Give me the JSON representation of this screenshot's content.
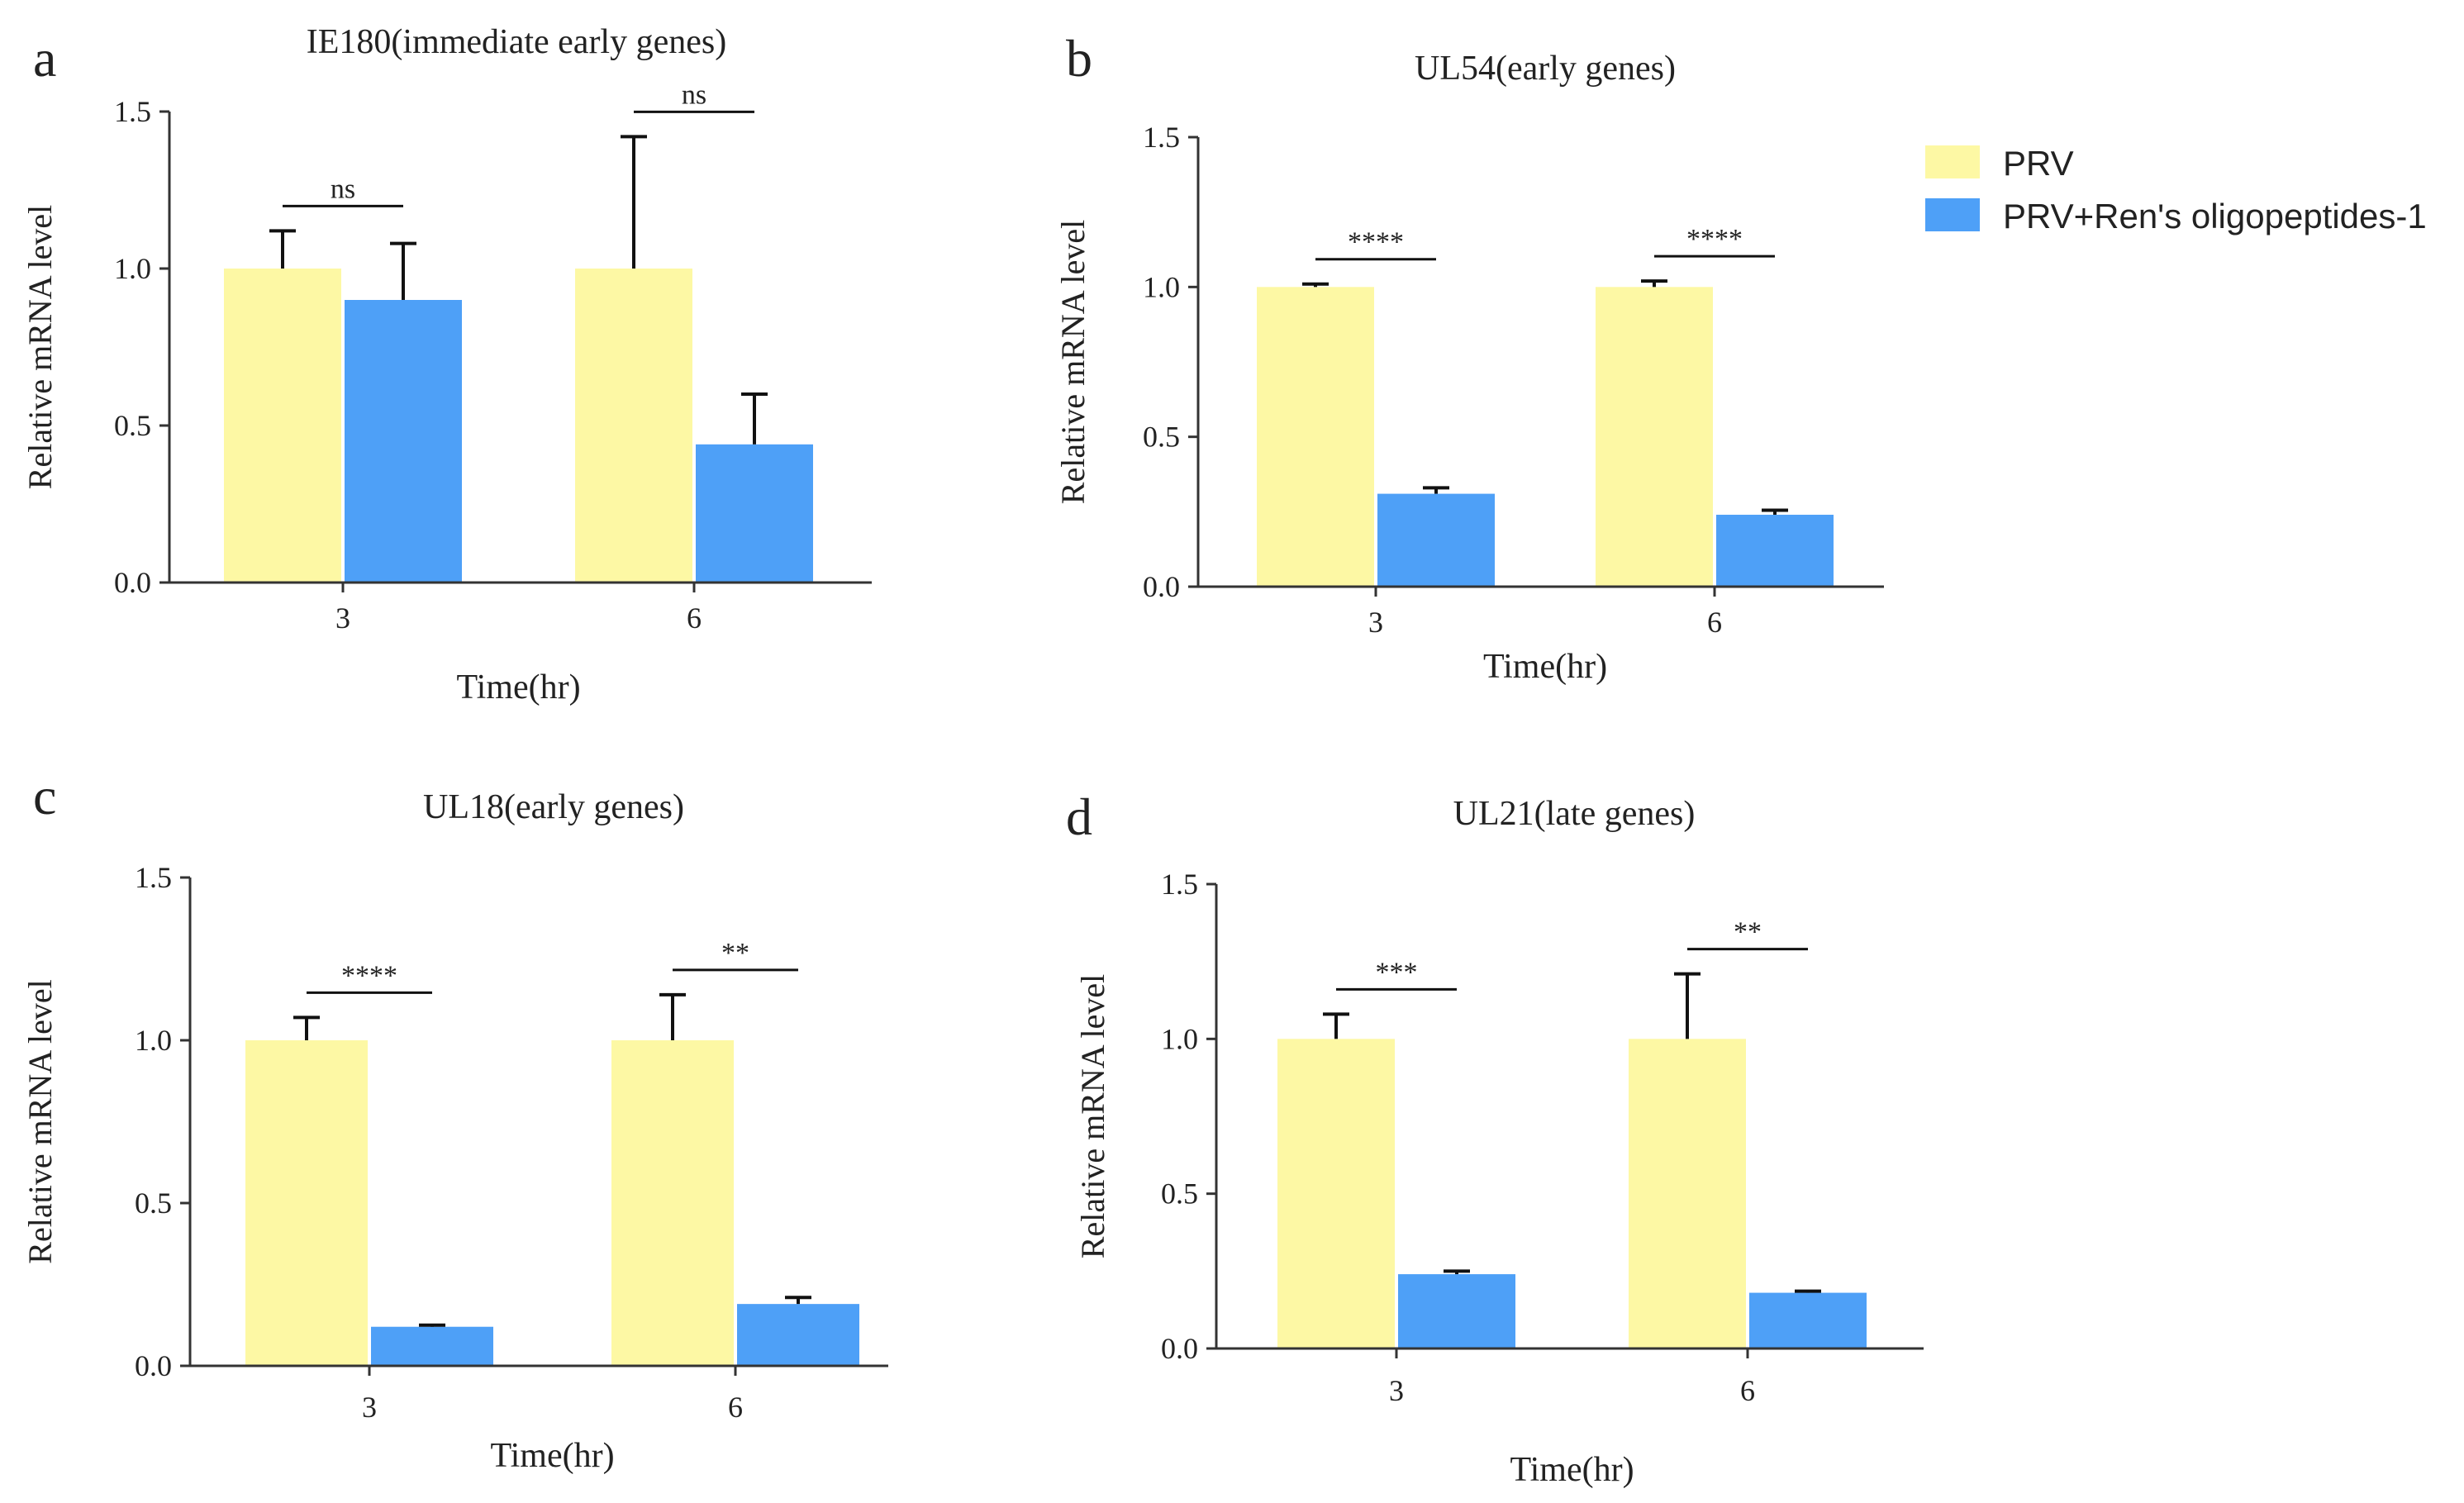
{
  "colors": {
    "prv": "#fdf8a4",
    "treated": "#4ea0f7",
    "axis": "#333333",
    "text": "#222222"
  },
  "legend": {
    "placement": "top-right",
    "entries": [
      {
        "label": "PRV",
        "color": "#fdf8a4"
      },
      {
        "label": "PRV+Ren's oligopeptides-1",
        "color": "#4ea0f7"
      }
    ]
  },
  "chart_data": [
    {
      "panel": "a",
      "type": "bar",
      "title": "IE180(immediate early genes)",
      "xlabel": "Time(hr)",
      "ylabel": "Relative mRNA level",
      "ylim": [
        0,
        1.5
      ],
      "yticks": [
        "0.0",
        "0.5",
        "1.0",
        "1.5"
      ],
      "grid": false,
      "categories": [
        "3",
        "6"
      ],
      "series": [
        {
          "name": "PRV",
          "values": [
            1.0,
            1.0
          ],
          "errors": [
            0.12,
            0.42
          ]
        },
        {
          "name": "PRV+Ren's oligopeptides-1",
          "values": [
            0.9,
            0.44
          ],
          "errors": [
            0.18,
            0.16
          ]
        }
      ],
      "significance": [
        "ns",
        "ns"
      ]
    },
    {
      "panel": "b",
      "type": "bar",
      "title": "UL54(early genes)",
      "xlabel": "Time(hr)",
      "ylabel": "Relative mRNA level",
      "ylim": [
        0,
        1.5
      ],
      "yticks": [
        "0.0",
        "0.5",
        "1.0",
        "1.5"
      ],
      "grid": false,
      "categories": [
        "3",
        "6"
      ],
      "series": [
        {
          "name": "PRV",
          "values": [
            1.0,
            1.0
          ],
          "errors": [
            0.01,
            0.02
          ]
        },
        {
          "name": "PRV+Ren's oligopeptides-1",
          "values": [
            0.31,
            0.24
          ],
          "errors": [
            0.02,
            0.015
          ]
        }
      ],
      "significance": [
        "****",
        "****"
      ]
    },
    {
      "panel": "c",
      "type": "bar",
      "title": "UL18(early genes)",
      "xlabel": "Time(hr)",
      "ylabel": "Relative mRNA level",
      "ylim": [
        0,
        1.5
      ],
      "yticks": [
        "0.0",
        "0.5",
        "1.0",
        "1.5"
      ],
      "grid": false,
      "categories": [
        "3",
        "6"
      ],
      "series": [
        {
          "name": "PRV",
          "values": [
            1.0,
            1.0
          ],
          "errors": [
            0.07,
            0.14
          ]
        },
        {
          "name": "PRV+Ren's oligopeptides-1",
          "values": [
            0.12,
            0.19
          ],
          "errors": [
            0.005,
            0.02
          ]
        }
      ],
      "significance": [
        "****",
        "**"
      ]
    },
    {
      "panel": "d",
      "type": "bar",
      "title": "UL21(late genes)",
      "xlabel": "Time(hr)",
      "ylabel": "Relative mRNA level",
      "ylim": [
        0,
        1.5
      ],
      "yticks": [
        "0.0",
        "0.5",
        "1.0",
        "1.5"
      ],
      "grid": false,
      "categories": [
        "3",
        "6"
      ],
      "series": [
        {
          "name": "PRV",
          "values": [
            1.0,
            1.0
          ],
          "errors": [
            0.08,
            0.21
          ]
        },
        {
          "name": "PRV+Ren's oligopeptides-1",
          "values": [
            0.24,
            0.18
          ],
          "errors": [
            0.01,
            0.005
          ]
        }
      ],
      "significance": [
        "***",
        "**"
      ]
    }
  ]
}
